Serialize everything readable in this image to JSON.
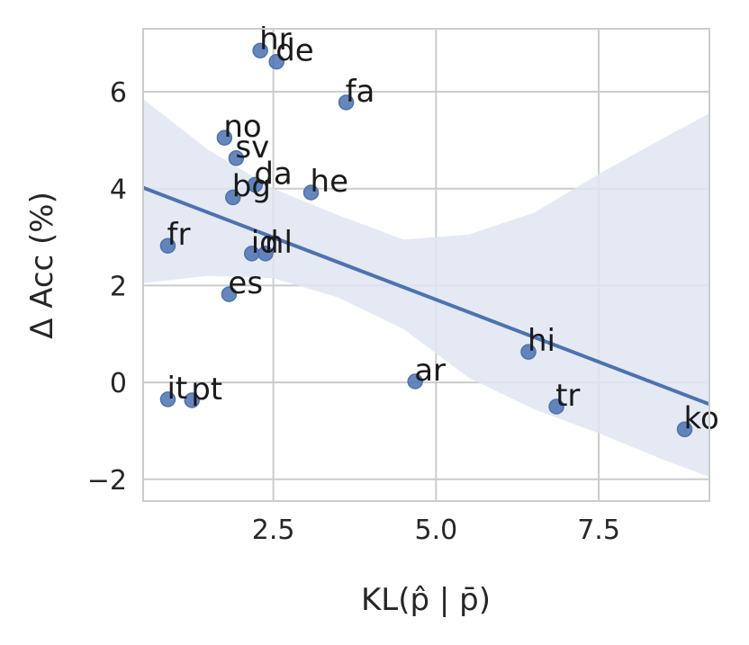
{
  "chart_data": {
    "type": "scatter",
    "title": "",
    "xlabel": "KL(p̂ | p̄)",
    "ylabel": "Δ Acc (%)",
    "xlim": [
      0.5,
      9.2
    ],
    "ylim": [
      -2.45,
      7.3
    ],
    "xticks": [
      2.5,
      5.0,
      7.5
    ],
    "xtick_labels": [
      "2.5",
      "5.0",
      "7.5"
    ],
    "yticks": [
      -2,
      0,
      2,
      4,
      6
    ],
    "ytick_labels": [
      "−2",
      "0",
      "2",
      "4",
      "6"
    ],
    "grid": true,
    "point_color": "#4c72b0",
    "line_color": "#4c72b0",
    "band_color": "#dfe5f1",
    "points": [
      {
        "label": "hr",
        "x": 2.3,
        "y": 6.85
      },
      {
        "label": "de",
        "x": 2.55,
        "y": 6.62
      },
      {
        "label": "fa",
        "x": 3.62,
        "y": 5.78
      },
      {
        "label": "no",
        "x": 1.75,
        "y": 5.05
      },
      {
        "label": "sv",
        "x": 1.93,
        "y": 4.63
      },
      {
        "label": "da",
        "x": 2.22,
        "y": 4.08
      },
      {
        "label": "bg",
        "x": 1.88,
        "y": 3.82
      },
      {
        "label": "he",
        "x": 3.08,
        "y": 3.92
      },
      {
        "label": "fr",
        "x": 0.88,
        "y": 2.82
      },
      {
        "label": "id",
        "x": 2.17,
        "y": 2.66
      },
      {
        "label": "nl",
        "x": 2.38,
        "y": 2.66
      },
      {
        "label": "es",
        "x": 1.82,
        "y": 1.82
      },
      {
        "label": "hi",
        "x": 6.42,
        "y": 0.63
      },
      {
        "label": "ar",
        "x": 4.68,
        "y": 0.02
      },
      {
        "label": "it",
        "x": 0.88,
        "y": -0.35
      },
      {
        "label": "pt",
        "x": 1.25,
        "y": -0.37
      },
      {
        "label": "tr",
        "x": 6.85,
        "y": -0.5
      },
      {
        "label": "ko",
        "x": 8.82,
        "y": -0.97
      }
    ],
    "regression": {
      "x": [
        0.5,
        9.2
      ],
      "y": [
        4.02,
        -0.45
      ]
    },
    "confidence_band": {
      "x": [
        0.5,
        1.5,
        2.5,
        3.5,
        4.5,
        5.5,
        6.5,
        7.5,
        8.5,
        9.2
      ],
      "upper": [
        5.85,
        4.8,
        4.0,
        3.45,
        2.95,
        3.05,
        3.5,
        4.3,
        5.05,
        5.55
      ],
      "lower": [
        2.05,
        2.2,
        2.15,
        1.75,
        1.1,
        0.1,
        -0.55,
        -1.05,
        -1.6,
        -1.95
      ]
    }
  }
}
